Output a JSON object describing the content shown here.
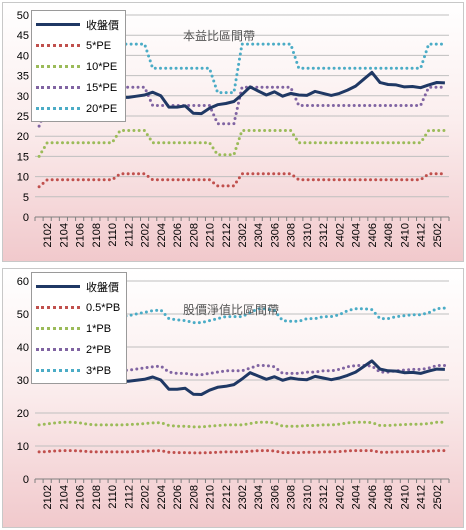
{
  "chart_data": [
    {
      "type": "line",
      "title": "本益比區間帶",
      "xlabel": "",
      "ylabel": "",
      "ylim": [
        0,
        50
      ],
      "yticks": [
        0,
        5,
        10,
        15,
        20,
        25,
        30,
        35,
        40,
        45,
        50
      ],
      "grid": true,
      "legend_position": "top-left",
      "x_tick_labels": [
        "2102",
        "2104",
        "2106",
        "2108",
        "2110",
        "2112",
        "2202",
        "2204",
        "2206",
        "2208",
        "2210",
        "2212",
        "2302",
        "2304",
        "2306",
        "2308",
        "2310",
        "2312",
        "2402",
        "2404",
        "2406",
        "2408",
        "2410",
        "2412",
        "2502"
      ],
      "x": [
        "2101",
        "2102",
        "2103",
        "2104",
        "2105",
        "2106",
        "2107",
        "2108",
        "2109",
        "2110",
        "2111",
        "2112",
        "2201",
        "2202",
        "2203",
        "2204",
        "2205",
        "2206",
        "2207",
        "2208",
        "2209",
        "2210",
        "2211",
        "2212",
        "2301",
        "2302",
        "2303",
        "2304",
        "2305",
        "2306",
        "2307",
        "2308",
        "2309",
        "2310",
        "2311",
        "2312",
        "2401",
        "2402",
        "2403",
        "2404",
        "2405",
        "2406",
        "2407",
        "2408",
        "2409",
        "2410",
        "2411",
        "2412",
        "2501",
        "2502",
        "2503"
      ],
      "series": [
        {
          "name": "收盤價",
          "color": "#1f3864",
          "style": "solid",
          "values": [
            30.2,
            30.8,
            31.8,
            31.4,
            31.5,
            30.5,
            30.1,
            30.0,
            30.0,
            29.9,
            29.6,
            29.6,
            29.9,
            30.2,
            30.9,
            30.0,
            27.2,
            27.2,
            27.5,
            25.7,
            25.6,
            26.9,
            27.8,
            28.1,
            28.6,
            30.3,
            32.2,
            31.2,
            30.2,
            31.0,
            29.9,
            30.6,
            30.2,
            30.1,
            31.1,
            30.6,
            30.1,
            30.6,
            31.4,
            32.4,
            34.1,
            35.8,
            33.3,
            32.8,
            32.7,
            32.2,
            32.3,
            32.0,
            32.7,
            33.3,
            33.2
          ]
        },
        {
          "name": "5*PE",
          "color": "#c0504d",
          "style": "dotted",
          "values": [
            7.5,
            9.2,
            9.2,
            9.2,
            9.2,
            9.2,
            9.2,
            9.2,
            9.2,
            9.2,
            10.7,
            10.7,
            10.7,
            10.7,
            9.2,
            9.2,
            9.2,
            9.2,
            9.2,
            9.2,
            9.2,
            9.2,
            7.7,
            7.7,
            7.7,
            10.7,
            10.7,
            10.7,
            10.7,
            10.7,
            10.7,
            10.7,
            9.2,
            9.2,
            9.2,
            9.2,
            9.2,
            9.2,
            9.2,
            9.2,
            9.2,
            9.2,
            9.2,
            9.2,
            9.2,
            9.2,
            9.2,
            9.2,
            10.7,
            10.7,
            10.7
          ]
        },
        {
          "name": "10*PE",
          "color": "#9bbb59",
          "style": "dotted",
          "values": [
            15.0,
            18.4,
            18.4,
            18.4,
            18.4,
            18.4,
            18.4,
            18.4,
            18.4,
            18.4,
            21.4,
            21.4,
            21.4,
            21.4,
            18.4,
            18.4,
            18.4,
            18.4,
            18.4,
            18.4,
            18.4,
            18.4,
            15.4,
            15.4,
            15.4,
            21.4,
            21.4,
            21.4,
            21.4,
            21.4,
            21.4,
            21.4,
            18.4,
            18.4,
            18.4,
            18.4,
            18.4,
            18.4,
            18.4,
            18.4,
            18.4,
            18.4,
            18.4,
            18.4,
            18.4,
            18.4,
            18.4,
            18.4,
            21.4,
            21.4,
            21.4
          ]
        },
        {
          "name": "15*PE",
          "color": "#8064a2",
          "style": "dotted",
          "values": [
            22.5,
            27.6,
            27.6,
            27.6,
            27.6,
            27.6,
            27.6,
            27.6,
            27.6,
            27.6,
            32.1,
            32.1,
            32.1,
            32.1,
            27.6,
            27.6,
            27.6,
            27.6,
            27.6,
            27.6,
            27.6,
            27.6,
            23.1,
            23.1,
            23.1,
            32.1,
            32.1,
            32.1,
            32.1,
            32.1,
            32.1,
            32.1,
            27.6,
            27.6,
            27.6,
            27.6,
            27.6,
            27.6,
            27.6,
            27.6,
            27.6,
            27.6,
            27.6,
            27.6,
            27.6,
            27.6,
            27.6,
            27.6,
            32.1,
            32.1,
            32.1
          ]
        },
        {
          "name": "20*PE",
          "color": "#4bacc6",
          "style": "dotted",
          "values": [
            30.0,
            36.8,
            36.8,
            36.8,
            36.8,
            36.8,
            36.8,
            36.8,
            36.8,
            36.8,
            42.8,
            42.8,
            42.8,
            42.8,
            36.8,
            36.8,
            36.8,
            36.8,
            36.8,
            36.8,
            36.8,
            36.8,
            30.8,
            30.8,
            30.8,
            42.8,
            42.8,
            42.8,
            42.8,
            42.8,
            42.8,
            42.8,
            36.8,
            36.8,
            36.8,
            36.8,
            36.8,
            36.8,
            36.8,
            36.8,
            36.8,
            36.8,
            36.8,
            36.8,
            36.8,
            36.8,
            36.8,
            36.8,
            42.8,
            42.8,
            42.8
          ]
        }
      ]
    },
    {
      "type": "line",
      "title": "股價淨值比區間帶",
      "xlabel": "",
      "ylabel": "",
      "ylim": [
        0,
        60
      ],
      "yticks": [
        0,
        10,
        20,
        30,
        40,
        50,
        60
      ],
      "grid": true,
      "legend_position": "top-left",
      "x_tick_labels": [
        "2102",
        "2104",
        "2106",
        "2108",
        "2110",
        "2112",
        "2202",
        "2204",
        "2206",
        "2208",
        "2210",
        "2212",
        "2302",
        "2304",
        "2306",
        "2308",
        "2310",
        "2312",
        "2402",
        "2404",
        "2406",
        "2408",
        "2410",
        "2412",
        "2502"
      ],
      "x": [
        "2101",
        "2102",
        "2103",
        "2104",
        "2105",
        "2106",
        "2107",
        "2108",
        "2109",
        "2110",
        "2111",
        "2112",
        "2201",
        "2202",
        "2203",
        "2204",
        "2205",
        "2206",
        "2207",
        "2208",
        "2209",
        "2210",
        "2211",
        "2212",
        "2301",
        "2302",
        "2303",
        "2304",
        "2305",
        "2306",
        "2307",
        "2308",
        "2309",
        "2310",
        "2311",
        "2312",
        "2401",
        "2402",
        "2403",
        "2404",
        "2405",
        "2406",
        "2407",
        "2408",
        "2409",
        "2410",
        "2411",
        "2412",
        "2501",
        "2502",
        "2503"
      ],
      "series": [
        {
          "name": "收盤價",
          "color": "#1f3864",
          "style": "solid",
          "values": [
            30.2,
            30.8,
            31.8,
            31.4,
            31.5,
            30.5,
            30.1,
            30.0,
            30.0,
            29.9,
            29.6,
            29.6,
            29.9,
            30.2,
            30.9,
            30.0,
            27.2,
            27.2,
            27.5,
            25.7,
            25.6,
            26.9,
            27.8,
            28.1,
            28.6,
            30.3,
            32.2,
            31.2,
            30.2,
            31.0,
            29.9,
            30.6,
            30.2,
            30.1,
            31.1,
            30.6,
            30.1,
            30.6,
            31.4,
            32.4,
            34.1,
            35.8,
            33.3,
            32.8,
            32.7,
            32.2,
            32.3,
            32.0,
            32.7,
            33.3,
            33.2
          ]
        },
        {
          "name": "0.5*PB",
          "color": "#c0504d",
          "style": "dotted",
          "values": [
            8.2,
            8.3,
            8.5,
            8.6,
            8.6,
            8.5,
            8.3,
            8.2,
            8.2,
            8.2,
            8.2,
            8.2,
            8.3,
            8.4,
            8.5,
            8.6,
            8.1,
            8.0,
            8.0,
            7.9,
            7.9,
            8.0,
            8.1,
            8.2,
            8.2,
            8.2,
            8.4,
            8.6,
            8.6,
            8.5,
            8.0,
            8.0,
            8.0,
            8.1,
            8.1,
            8.2,
            8.2,
            8.3,
            8.5,
            8.6,
            8.6,
            8.6,
            8.1,
            8.1,
            8.2,
            8.2,
            8.3,
            8.3,
            8.4,
            8.6,
            8.6
          ]
        },
        {
          "name": "1*PB",
          "color": "#9bbb59",
          "style": "dotted",
          "values": [
            16.4,
            16.7,
            17.0,
            17.2,
            17.2,
            17.0,
            16.6,
            16.4,
            16.4,
            16.4,
            16.4,
            16.5,
            16.6,
            16.8,
            17.0,
            17.1,
            16.2,
            16.0,
            16.0,
            15.8,
            15.8,
            16.0,
            16.2,
            16.4,
            16.4,
            16.4,
            16.8,
            17.2,
            17.2,
            17.0,
            16.0,
            16.0,
            16.0,
            16.2,
            16.2,
            16.4,
            16.4,
            16.6,
            17.0,
            17.2,
            17.2,
            17.1,
            16.2,
            16.2,
            16.4,
            16.5,
            16.6,
            16.6,
            16.8,
            17.2,
            17.2
          ]
        },
        {
          "name": "2*PB",
          "color": "#8064a2",
          "style": "dotted",
          "values": [
            33.0,
            33.5,
            34.0,
            34.3,
            34.3,
            33.8,
            33.0,
            32.8,
            32.8,
            32.8,
            32.8,
            33.0,
            33.3,
            33.7,
            34.0,
            34.2,
            32.4,
            32.0,
            32.0,
            31.6,
            31.6,
            32.0,
            32.4,
            32.8,
            32.8,
            32.8,
            33.6,
            34.4,
            34.4,
            34.0,
            32.0,
            32.0,
            32.0,
            32.4,
            32.4,
            32.8,
            32.8,
            33.2,
            34.0,
            34.4,
            34.4,
            34.2,
            32.4,
            32.4,
            32.8,
            33.0,
            33.2,
            33.2,
            33.6,
            34.4,
            34.4
          ]
        },
        {
          "name": "3*PB",
          "color": "#4bacc6",
          "style": "dotted",
          "values": [
            49.4,
            50.0,
            50.5,
            51.0,
            51.0,
            50.5,
            49.5,
            49.2,
            49.2,
            49.2,
            49.2,
            49.5,
            50.0,
            50.5,
            51.0,
            51.2,
            48.6,
            48.2,
            48.0,
            47.4,
            47.4,
            48.0,
            48.6,
            49.2,
            49.2,
            49.2,
            50.4,
            51.6,
            51.6,
            51.0,
            48.0,
            47.8,
            47.8,
            48.6,
            48.6,
            49.2,
            49.2,
            49.8,
            51.0,
            51.6,
            51.6,
            51.3,
            48.6,
            48.6,
            49.2,
            49.5,
            49.8,
            49.8,
            50.4,
            51.6,
            51.8
          ]
        }
      ]
    }
  ]
}
